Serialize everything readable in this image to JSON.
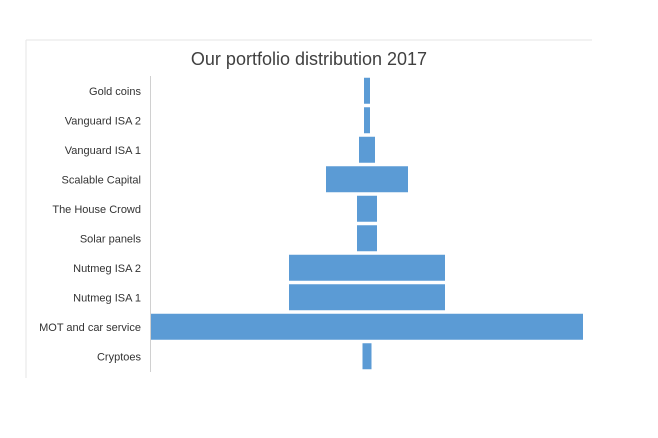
{
  "chart_data": {
    "type": "bar",
    "orientation": "horizontal",
    "subtype": "funnel",
    "title": "Our portfolio distribution 2017",
    "xlabel": "",
    "ylabel": "",
    "grid": false,
    "legend": "none",
    "bar_color": "#5b9bd5",
    "categories": [
      "Gold coins",
      "Vanguard ISA 2",
      "Vanguard ISA 1",
      "Scalable Capital",
      "The House Crowd",
      "Solar panels",
      "Nutmeg ISA 2",
      "Nutmeg ISA 1",
      "MOT and car service",
      "Cryptoes"
    ],
    "values": [
      6,
      6,
      16,
      82,
      20,
      20,
      156,
      156,
      432,
      9
    ],
    "xlim": [
      0,
      432
    ]
  }
}
